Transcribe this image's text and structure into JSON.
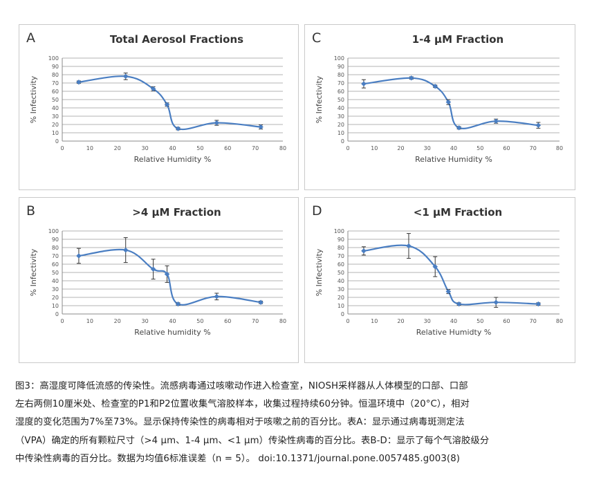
{
  "colors": {
    "series": "#4a7ec2",
    "grid": "#9a9a9a",
    "axis": "#888888",
    "text": "#222222",
    "errorbar": "#333333"
  },
  "chart_data": [
    {
      "id": "A",
      "type": "line",
      "letter": "A",
      "title": "Total Aerosol Fractions",
      "xlabel": "Relative Humidity %",
      "ylabel": "% Infectivity",
      "xlim": [
        0,
        80
      ],
      "ylim": [
        0,
        100
      ],
      "xticks": [
        0,
        10,
        20,
        30,
        40,
        50,
        60,
        70,
        80
      ],
      "yticks": [
        0,
        10,
        20,
        30,
        40,
        50,
        60,
        70,
        80,
        90,
        100
      ],
      "x": [
        6,
        23,
        33,
        38,
        42,
        56,
        72
      ],
      "y": [
        71,
        78,
        63,
        44,
        15,
        22,
        17
      ],
      "err": [
        1.5,
        4,
        2.5,
        2,
        1.5,
        3,
        2.5
      ]
    },
    {
      "id": "C",
      "type": "line",
      "letter": "C",
      "title": "1-4 µM Fraction",
      "xlabel": "Relative Humidity %",
      "ylabel": "% Infectivity",
      "xlim": [
        0,
        80
      ],
      "ylim": [
        0,
        100
      ],
      "xticks": [
        0,
        10,
        20,
        30,
        40,
        50,
        60,
        70,
        80
      ],
      "yticks": [
        0,
        10,
        20,
        30,
        40,
        50,
        60,
        70,
        80,
        90,
        100
      ],
      "x": [
        6,
        24,
        33,
        38,
        42,
        56,
        72
      ],
      "y": [
        69,
        76,
        66,
        47,
        16,
        24,
        19
      ],
      "err": [
        5,
        1.5,
        1.5,
        3,
        1.5,
        2.5,
        3.5
      ]
    },
    {
      "id": "B",
      "type": "line",
      "letter": "B",
      "title": ">4 µM Fraction",
      "xlabel": "Relative humidity %",
      "ylabel": "% Infectivity",
      "xlim": [
        0,
        80
      ],
      "ylim": [
        0,
        100
      ],
      "xticks": [
        0,
        10,
        20,
        30,
        40,
        50,
        60,
        70,
        80
      ],
      "yticks": [
        0,
        10,
        20,
        30,
        40,
        50,
        60,
        70,
        80,
        90,
        100
      ],
      "x": [
        6,
        23,
        33,
        38,
        42,
        56,
        72
      ],
      "y": [
        70,
        77,
        54,
        48,
        12,
        21,
        14
      ],
      "err": [
        9,
        15,
        12,
        10,
        1.5,
        4,
        1.5
      ]
    },
    {
      "id": "D",
      "type": "line",
      "letter": "D",
      "title": "<1 µM Fraction",
      "xlabel": "Relative Humidty %",
      "ylabel": "% Infectivity",
      "xlim": [
        0,
        80
      ],
      "ylim": [
        0,
        100
      ],
      "xticks": [
        0,
        10,
        20,
        30,
        40,
        50,
        60,
        70,
        80
      ],
      "yticks": [
        0,
        10,
        20,
        30,
        40,
        50,
        60,
        70,
        80,
        90,
        100
      ],
      "x": [
        6,
        23,
        33,
        38,
        42,
        56,
        72
      ],
      "y": [
        76,
        82,
        57,
        27,
        12,
        14,
        12
      ],
      "err": [
        5,
        15,
        12,
        2.5,
        1.5,
        6,
        1.5
      ]
    }
  ],
  "caption": "图3：高湿度可降低流感的传染性。流感病毒通过咳嗽动作进入检查室，NIOSH采样器从人体模型的口部、口部\n左右两侧10厘米处、检查室的P1和P2位置收集气溶胶样本，收集过程持续60分钟。恒温环境中（20°C），相对\n湿度的变化范围为7%至73%。显示保持传染性的病毒相对于咳嗽之前的百分比。表A：显示通过病毒斑测定法\n（VPA）确定的所有颗粒尺寸（>4 μm、1-4 μm、<1 μm）传染性病毒的百分比。表B-D：显示了每个气溶胶级分\n中传染性病毒的百分比。数据为均值6标准误差（n = 5）。  doi:10.1371/journal.pone.0057485.g003(8)"
}
